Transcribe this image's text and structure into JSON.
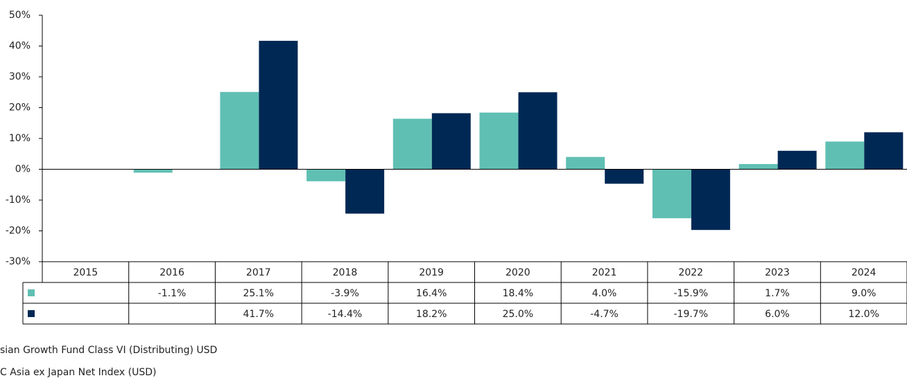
{
  "chart_data": {
    "type": "bar",
    "categories": [
      "2015",
      "2016",
      "2017",
      "2018",
      "2019",
      "2020",
      "2021",
      "2022",
      "2023",
      "2024"
    ],
    "series": [
      {
        "name": "sian Growth Fund Class VI (Distributing) USD",
        "color": "#60bfb3",
        "values": [
          null,
          -1.1,
          25.1,
          -3.9,
          16.4,
          18.4,
          4.0,
          -15.9,
          1.7,
          9.0
        ],
        "value_labels": [
          null,
          "-1.1%",
          "25.1%",
          "-3.9%",
          "16.4%",
          "18.4%",
          "4.0%",
          "-15.9%",
          "1.7%",
          "9.0%"
        ]
      },
      {
        "name": "C Asia ex Japan Net Index (USD)",
        "color": "#002855",
        "values": [
          null,
          null,
          41.7,
          -14.4,
          18.2,
          25.0,
          -4.7,
          -19.7,
          6.0,
          12.0
        ],
        "value_labels": [
          null,
          null,
          "41.7%",
          "-14.4%",
          "18.2%",
          "25.0%",
          "-4.7%",
          "-19.7%",
          "6.0%",
          "12.0%"
        ]
      }
    ],
    "ylim": [
      -30,
      50
    ],
    "yticks": [
      {
        "value": -30,
        "label": "-30%"
      },
      {
        "value": -20,
        "label": "-20%"
      },
      {
        "value": -10,
        "label": "-10%"
      },
      {
        "value": 0,
        "label": "0%"
      },
      {
        "value": 10,
        "label": "10%"
      },
      {
        "value": 20,
        "label": "20%"
      },
      {
        "value": 30,
        "label": "30%"
      },
      {
        "value": 40,
        "label": "40%"
      },
      {
        "value": 50,
        "label": "50%"
      }
    ],
    "grid": false
  }
}
